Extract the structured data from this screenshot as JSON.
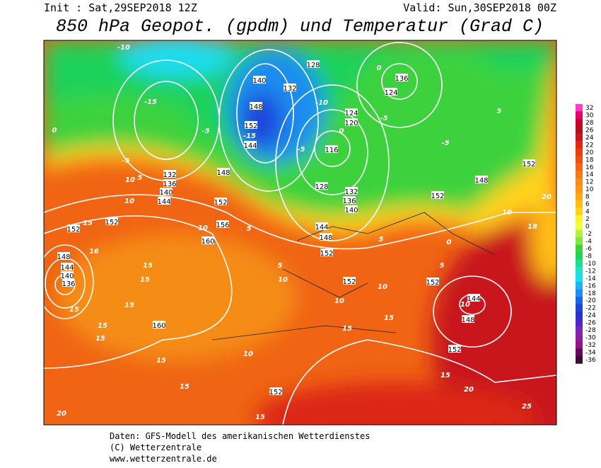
{
  "header": {
    "init": "Init : Sat,29SEP2018 12Z",
    "valid": "Valid: Sun,30SEP2018 00Z",
    "title": "850 hPa Geopot. (gpdm) und Temperatur (Grad C)"
  },
  "footer": {
    "lines": [
      "Daten: GFS-Modell des amerikanischen Wetterdienstes",
      "(C) Wetterzentrale",
      "www.wetterzentrale.de"
    ]
  },
  "legend": {
    "ticks": [
      32,
      30,
      28,
      26,
      24,
      22,
      20,
      18,
      16,
      14,
      12,
      10,
      8,
      6,
      4,
      2,
      0,
      -2,
      -4,
      -6,
      -8,
      -10,
      -12,
      -14,
      -16,
      -18,
      -20,
      -22,
      -24,
      -26,
      -28,
      -30,
      -32,
      -34,
      -36
    ],
    "colors": [
      "#ff3cc8",
      "#e6006e",
      "#c8002a",
      "#b40f1e",
      "#c8141e",
      "#dc2814",
      "#e63c0f",
      "#f0500f",
      "#f0641e",
      "#f57819",
      "#f58c19",
      "#fa9619",
      "#faaa14",
      "#ffbe14",
      "#ffd21e",
      "#fff032",
      "#f0ff3c",
      "#b4f03c",
      "#82e63c",
      "#3cd23c",
      "#1ed25a",
      "#1edc96",
      "#1ee1c8",
      "#1edcf0",
      "#1eb4f0",
      "#1e8cf0",
      "#1e64e6",
      "#1e46dc",
      "#2832c8",
      "#5028c8",
      "#7828b4",
      "#8c1ea0",
      "#961482",
      "#640a5a",
      "#3c0a3c"
    ]
  },
  "map": {
    "geopotential_labels": [
      132,
      136,
      140,
      144,
      148,
      152,
      156,
      160,
      152,
      152,
      148,
      144,
      140,
      136,
      128,
      132,
      136,
      140,
      144,
      148,
      152,
      124,
      120,
      116,
      152,
      148,
      152,
      152,
      152,
      144,
      148,
      152,
      160,
      152,
      128,
      132,
      140,
      148,
      152,
      144,
      124,
      136
    ],
    "temperature_labels": [
      -10,
      -15,
      -5,
      0,
      -5,
      5,
      10,
      15,
      16,
      15,
      15,
      15,
      15,
      15,
      15,
      15,
      15,
      10,
      10,
      5,
      5,
      10,
      10,
      15,
      15,
      20,
      25,
      15,
      20,
      15,
      5,
      0,
      5,
      10,
      5,
      -5,
      -5,
      0,
      -10,
      -15,
      10,
      18,
      20,
      0,
      -5,
      10,
      10
    ]
  }
}
